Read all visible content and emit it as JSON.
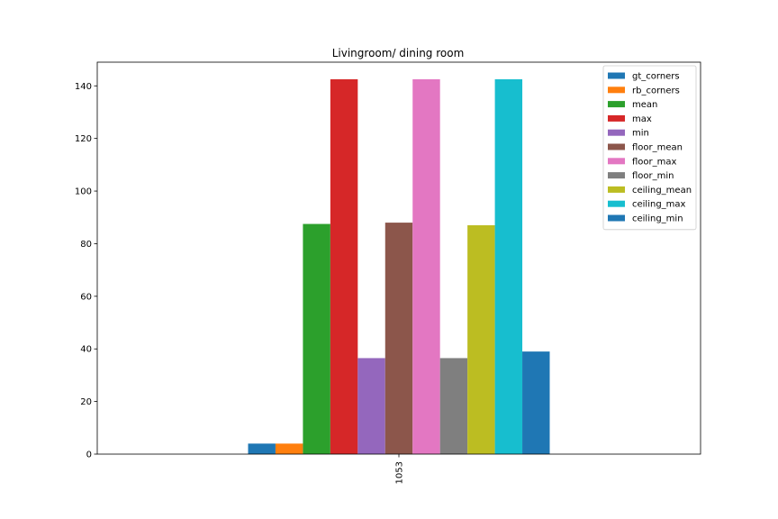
{
  "chart_data": {
    "type": "bar",
    "title": "Livingroom/ dining room",
    "xlabel": "",
    "ylabel": "",
    "categories": [
      "1053"
    ],
    "ylim": [
      0,
      149
    ],
    "yticks": [
      0,
      20,
      40,
      60,
      80,
      100,
      120,
      140
    ],
    "grid": false,
    "legend_position": "top-right",
    "series": [
      {
        "name": "gt_corners",
        "values": [
          4
        ],
        "color": "#1f77b4"
      },
      {
        "name": "rb_corners",
        "values": [
          4
        ],
        "color": "#ff7f0e"
      },
      {
        "name": "mean",
        "values": [
          87.5
        ],
        "color": "#2ca02c"
      },
      {
        "name": "max",
        "values": [
          142.5
        ],
        "color": "#d62728"
      },
      {
        "name": "min",
        "values": [
          36.5
        ],
        "color": "#9467bd"
      },
      {
        "name": "floor_mean",
        "values": [
          88
        ],
        "color": "#8c564b"
      },
      {
        "name": "floor_max",
        "values": [
          142.5
        ],
        "color": "#e377c2"
      },
      {
        "name": "floor_min",
        "values": [
          36.5
        ],
        "color": "#7f7f7f"
      },
      {
        "name": "ceiling_mean",
        "values": [
          87
        ],
        "color": "#bcbd22"
      },
      {
        "name": "ceiling_max",
        "values": [
          142.5
        ],
        "color": "#17becf"
      },
      {
        "name": "ceiling_min",
        "values": [
          39
        ],
        "color": "#1f77b4"
      }
    ]
  }
}
